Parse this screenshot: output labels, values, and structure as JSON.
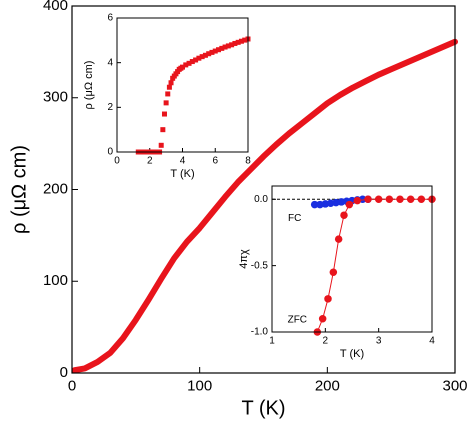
{
  "chart_data": [
    {
      "type": "line",
      "x_label": "T (K)",
      "y_label": "ρ (μΩ cm)",
      "x": [
        2,
        10,
        20,
        30,
        40,
        50,
        60,
        70,
        80,
        90,
        100,
        110,
        120,
        130,
        140,
        150,
        160,
        170,
        180,
        190,
        200,
        210,
        220,
        230,
        240,
        250,
        260,
        270,
        280,
        290,
        300
      ],
      "series": [
        {
          "color": "#e8141c",
          "values": [
            3,
            5,
            12,
            22,
            38,
            58,
            80,
            103,
            125,
            143,
            158,
            175,
            192,
            208,
            222,
            236,
            249,
            261,
            272,
            283,
            294,
            303,
            311,
            318,
            325,
            331,
            337,
            343,
            349,
            355,
            361
          ]
        }
      ],
      "xlim": [
        0,
        300
      ],
      "xticks": [
        0,
        100,
        200,
        300
      ],
      "ylim": [
        0,
        400
      ],
      "yticks": [
        0,
        100,
        200,
        300,
        400
      ]
    },
    {
      "type": "scatter",
      "x_label": "T (K)",
      "y_label": "ρ (μΩ cm)",
      "x": [
        1.3,
        1.5,
        1.7,
        1.9,
        2.1,
        2.3,
        2.5,
        2.6,
        2.7,
        2.8,
        2.9,
        3.0,
        3.1,
        3.2,
        3.3,
        3.4,
        3.5,
        3.6,
        3.7,
        3.8,
        3.9,
        4.0,
        4.2,
        4.4,
        4.6,
        4.8,
        5.0,
        5.2,
        5.4,
        5.6,
        5.8,
        6.0,
        6.2,
        6.4,
        6.6,
        6.8,
        7.0,
        7.2,
        7.4,
        7.6,
        7.8,
        8.0
      ],
      "series": [
        {
          "color": "#e8141c",
          "marker": "square",
          "values": [
            0,
            0,
            0,
            0,
            0,
            0,
            0,
            0,
            0.3,
            1.0,
            1.7,
            2.2,
            2.6,
            2.9,
            3.1,
            3.3,
            3.4,
            3.5,
            3.6,
            3.7,
            3.75,
            3.8,
            3.9,
            3.97,
            4.05,
            4.12,
            4.2,
            4.27,
            4.33,
            4.4,
            4.46,
            4.52,
            4.58,
            4.64,
            4.7,
            4.75,
            4.8,
            4.86,
            4.91,
            4.96,
            5.01,
            5.06
          ]
        }
      ],
      "xlim": [
        0,
        8
      ],
      "xticks": [
        0,
        2,
        4,
        6,
        8
      ],
      "ylim": [
        0,
        6
      ],
      "yticks": [
        0,
        2,
        4,
        6
      ]
    },
    {
      "type": "scatter",
      "x_label": "T (K)",
      "y_label": "4πχ",
      "hline": 0,
      "series": [
        {
          "name": "FC",
          "color": "#1a2fe0",
          "marker": "circle",
          "line": false,
          "x": [
            1.8,
            1.9,
            2.0,
            2.1,
            2.2,
            2.3,
            2.4,
            2.5,
            2.6,
            2.7,
            2.8
          ],
          "values": [
            -0.04,
            -0.04,
            -0.035,
            -0.03,
            -0.025,
            -0.02,
            -0.015,
            -0.01,
            -0.005,
            0,
            0
          ]
        },
        {
          "name": "ZFC",
          "color": "#e8141c",
          "marker": "circle",
          "line": true,
          "x": [
            1.85,
            1.95,
            2.05,
            2.15,
            2.25,
            2.35,
            2.45,
            2.6,
            2.8,
            3.0,
            3.2,
            3.4,
            3.6,
            3.8,
            4.0
          ],
          "values": [
            -1.0,
            -0.9,
            -0.75,
            -0.55,
            -0.3,
            -0.12,
            -0.04,
            -0.01,
            0,
            0,
            0,
            0,
            0,
            0,
            0
          ]
        }
      ],
      "xlim": [
        1,
        4
      ],
      "xticks": [
        1,
        2,
        3,
        4
      ],
      "ylim": [
        -1.0,
        0.1
      ],
      "yticks": [
        {
          "value": 0,
          "label": "0.0"
        },
        {
          "value": -0.5,
          "label": "-0.5"
        },
        {
          "value": -1.0,
          "label": "-1.0"
        }
      ]
    }
  ]
}
